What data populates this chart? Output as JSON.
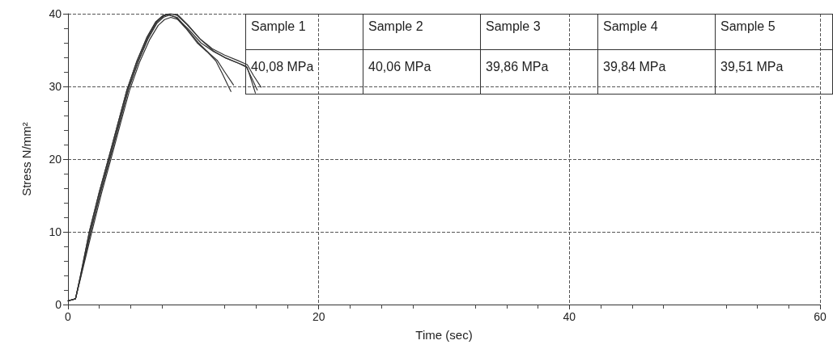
{
  "chart_data": {
    "type": "line",
    "xlabel": "Time (sec)",
    "ylabel": "Stress N/mm²",
    "xlim": [
      0,
      60
    ],
    "xticks": [
      0,
      20,
      40,
      60
    ],
    "ylim": [
      0,
      40
    ],
    "yticks": [
      0,
      10,
      20,
      30,
      40
    ],
    "grid": true,
    "marker": "none",
    "line_style": "solid",
    "annotations": [
      "Sample 1",
      "Sample 2",
      "Sample 3",
      "Sample 4",
      "Sample 5",
      "40,08 MPa",
      "40,06 MPa",
      "39,86 MPa",
      "39,84 MPa",
      "39,51 MPa"
    ],
    "series": [
      {
        "color": "#333333",
        "x": [
          0,
          0.6,
          1,
          1.7,
          2.5,
          3.3,
          4,
          4.7,
          5.5,
          6.3,
          7,
          7.6,
          8.1,
          8.7,
          9.5,
          10.5,
          11.5,
          12.5,
          13.5,
          14.3,
          14.8,
          15.4
        ],
        "values": [
          0.5,
          0.8,
          4,
          10,
          15.5,
          20.5,
          25,
          29.5,
          33.5,
          36.8,
          38.9,
          39.8,
          40,
          39.8,
          38.5,
          36.6,
          35.2,
          34.3,
          33.6,
          33,
          31.5,
          29.9
        ]
      },
      {
        "color": "#333333",
        "x": [
          0,
          0.6,
          1,
          1.8,
          2.6,
          3.4,
          4.1,
          4.8,
          5.6,
          6.4,
          7.1,
          7.7,
          8.2,
          8.8,
          9.6,
          10.6,
          11.6,
          12.6,
          13.6,
          14.3,
          14.6,
          14.95
        ],
        "values": [
          0.5,
          0.8,
          3.8,
          10,
          15.5,
          20.5,
          25,
          29.5,
          33.5,
          36.8,
          38.9,
          39.8,
          40,
          39.8,
          38.4,
          36.4,
          34.9,
          33.9,
          33.2,
          32.6,
          31,
          29.1
        ]
      },
      {
        "color": "#333333",
        "x": [
          0,
          0.6,
          1,
          1.7,
          2.5,
          3.3,
          4,
          4.7,
          5.5,
          6.3,
          7,
          7.5,
          8,
          8.6,
          9.4,
          10.3,
          11.2,
          11.8,
          12.3,
          12.8,
          13
        ],
        "values": [
          0.5,
          0.8,
          4,
          10,
          15.5,
          20.5,
          25,
          29.5,
          33.5,
          36.7,
          38.8,
          39.6,
          39.9,
          39.5,
          38,
          36,
          34.6,
          33.5,
          31.8,
          30,
          29.3
        ]
      },
      {
        "color": "#333333",
        "x": [
          0,
          0.6,
          1,
          1.8,
          2.6,
          3.4,
          4.1,
          4.8,
          5.6,
          6.4,
          7.1,
          7.6,
          8.1,
          8.7,
          9.5,
          10.4,
          11.3,
          11.9,
          12.5,
          13.2
        ],
        "values": [
          0.5,
          0.8,
          3.8,
          10,
          15.5,
          20.5,
          25,
          29.5,
          33.4,
          36.6,
          38.7,
          39.5,
          39.8,
          39.5,
          37.9,
          36,
          34.5,
          33.6,
          32,
          30.2
        ]
      },
      {
        "color": "#333333",
        "x": [
          0,
          0.6,
          1,
          1.9,
          2.7,
          3.5,
          4.2,
          4.9,
          5.7,
          6.5,
          7.2,
          7.7,
          8.2,
          8.8,
          9.6,
          10.6,
          11.6,
          12.6,
          13.6,
          14.2,
          14.7,
          15.1
        ],
        "values": [
          0.5,
          0.8,
          3.6,
          10,
          15.5,
          20.5,
          25,
          29.4,
          33.3,
          36.4,
          38.4,
          39.2,
          39.5,
          39.2,
          37.9,
          36,
          34.8,
          33.9,
          33.2,
          32.8,
          31,
          29.5
        ]
      }
    ]
  }
}
